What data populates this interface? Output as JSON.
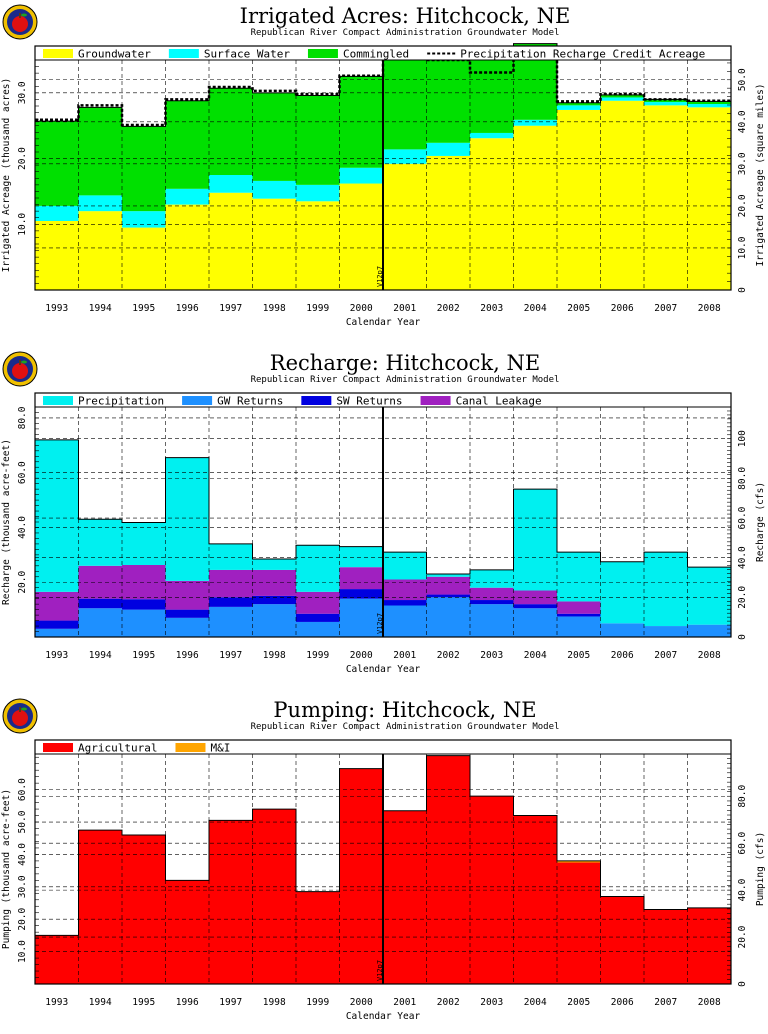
{
  "colors": {
    "groundwater": "#ffff00",
    "surface_water": "#00ffff",
    "commingled": "#00e000",
    "precipitation": "#00f0f0",
    "gw_returns": "#1e90ff",
    "sw_returns": "#0000e0",
    "canal_leakage": "#a020c0",
    "agricultural": "#ff0000",
    "mi": "#ffa500"
  },
  "logo_icon": "apple-logo-icon",
  "chart_data": [
    {
      "type": "bar",
      "stacked": true,
      "title": "Irrigated Acres: Hitchcock, NE",
      "subtitle": "Republican River Compact Administration Groundwater Model",
      "xlabel": "Calendar Year",
      "ylabel": "Irrigated Acreage (thousand acres)",
      "y2label": "Irrigated Acreage (square miles)",
      "annotation": "V12p7",
      "ylim": [
        0,
        35
      ],
      "yticks": [
        "10.0",
        "20.0",
        "30.0"
      ],
      "ytick_values": [
        10,
        20,
        30
      ],
      "y2lim": [
        0,
        54.7
      ],
      "y2ticks": [
        "0",
        "10.0",
        "20.0",
        "30.0",
        "40.0",
        "50.0"
      ],
      "y2tick_values": [
        0,
        10,
        20,
        30,
        40,
        50
      ],
      "legend_position": "top",
      "categories": [
        "1993",
        "1994",
        "1995",
        "1996",
        "1997",
        "1998",
        "1999",
        "2000",
        "2001",
        "2002",
        "2003",
        "2004",
        "2005",
        "2006",
        "2007",
        "2008"
      ],
      "series": [
        {
          "name": "Groundwater",
          "color_key": "groundwater",
          "values": [
            10.5,
            12.0,
            9.5,
            13.0,
            14.8,
            13.9,
            13.5,
            16.2,
            19.2,
            20.4,
            23.1,
            25.0,
            27.4,
            28.8,
            28.1,
            27.8
          ]
        },
        {
          "name": "Surface Water",
          "color_key": "surface_water",
          "values": [
            2.3,
            2.4,
            2.5,
            2.4,
            2.7,
            2.7,
            2.5,
            2.4,
            2.2,
            2.0,
            0.8,
            0.9,
            0.7,
            0.5,
            0.5,
            0.5
          ]
        },
        {
          "name": "Commingled",
          "color_key": "commingled",
          "values": [
            12.9,
            13.4,
            12.9,
            13.4,
            13.2,
            13.4,
            13.6,
            13.9,
            14.9,
            14.4,
            12.6,
            11.6,
            0.4,
            0.4,
            0.4,
            0.4
          ]
        }
      ],
      "line_series": {
        "name": "Precipitation Recharge Credit Acreage",
        "style": "dashed",
        "values": [
          25.9,
          28.1,
          25.1,
          29.0,
          30.9,
          30.3,
          29.8,
          32.6,
          36.5,
          35.0,
          33.1,
          35.7,
          28.7,
          29.8,
          29.0,
          28.8
        ]
      }
    },
    {
      "type": "bar",
      "stacked": true,
      "title": "Recharge: Hitchcock, NE",
      "subtitle": "Republican River Compact Administration Groundwater Model",
      "xlabel": "Calendar Year",
      "ylabel": "Recharge (thousand acre-feet)",
      "y2label": "Recharge (cfs)",
      "annotation": "V12p7",
      "ylim": [
        0,
        84
      ],
      "yticks": [
        "20.0",
        "40.0",
        "60.0",
        "80.0"
      ],
      "ytick_values": [
        20,
        40,
        60,
        80
      ],
      "y2lim": [
        0,
        116
      ],
      "y2ticks": [
        "0",
        "20.0",
        "40.0",
        "60.0",
        "80.0",
        "100"
      ],
      "y2tick_values": [
        0,
        20,
        40,
        60,
        80,
        100
      ],
      "legend_position": "top",
      "categories": [
        "1993",
        "1994",
        "1995",
        "1996",
        "1997",
        "1998",
        "1999",
        "2000",
        "2001",
        "2002",
        "2003",
        "2004",
        "2005",
        "2006",
        "2007",
        "2008"
      ],
      "series": [
        {
          "name": "GW Returns",
          "color_key": "gw_returns",
          "values": [
            3.0,
            10.5,
            10.0,
            7.0,
            11.0,
            12.0,
            5.5,
            14.0,
            11.5,
            14.5,
            12.0,
            10.5,
            7.5,
            5.0,
            4.0,
            4.5
          ]
        },
        {
          "name": "SW Returns",
          "color_key": "sw_returns",
          "values": [
            3.0,
            3.5,
            3.8,
            3.0,
            3.5,
            3.0,
            3.0,
            3.5,
            2.0,
            1.0,
            1.5,
            1.5,
            1.0,
            0.0,
            0.0,
            0.0
          ]
        },
        {
          "name": "Canal Leakage",
          "color_key": "canal_leakage",
          "values": [
            10.5,
            12.0,
            12.5,
            10.5,
            10.0,
            9.5,
            8.0,
            8.0,
            7.5,
            6.5,
            4.5,
            5.0,
            4.5,
            0.0,
            0.0,
            0.0
          ]
        },
        {
          "name": "Precipitation",
          "color_key": "precipitation",
          "values": [
            55.5,
            17.0,
            15.5,
            45.0,
            9.5,
            4.0,
            17.0,
            7.5,
            10.0,
            1.0,
            6.5,
            37.0,
            18.0,
            22.5,
            27.0,
            21.0
          ]
        }
      ]
    },
    {
      "type": "bar",
      "stacked": true,
      "title": "Pumping: Hitchcock, NE",
      "subtitle": "Republican River Compact Administration Groundwater Model",
      "xlabel": "Calendar Year",
      "ylabel": "Pumping (thousand acre-feet)",
      "y2label": "Pumping (cfs)",
      "annotation": "V12p7",
      "ylim": [
        0,
        71
      ],
      "yticks": [
        "10.0",
        "20.0",
        "30.0",
        "40.0",
        "50.0",
        "60.0"
      ],
      "ytick_values": [
        10,
        20,
        30,
        40,
        50,
        60
      ],
      "y2lim": [
        0,
        98
      ],
      "y2ticks": [
        "0",
        "20.0",
        "40.0",
        "60.0",
        "80.0"
      ],
      "y2tick_values": [
        0,
        20,
        40,
        60,
        80
      ],
      "legend_position": "top",
      "categories": [
        "1993",
        "1994",
        "1995",
        "1996",
        "1997",
        "1998",
        "1999",
        "2000",
        "2001",
        "2002",
        "2003",
        "2004",
        "2005",
        "2006",
        "2007",
        "2008"
      ],
      "series": [
        {
          "name": "Agricultural",
          "color_key": "agricultural",
          "values": [
            15.0,
            47.5,
            46.0,
            32.0,
            50.5,
            54.0,
            28.5,
            66.5,
            53.5,
            70.5,
            58.0,
            52.0,
            37.5,
            27.0,
            23.0,
            23.5
          ]
        },
        {
          "name": "M&I",
          "color_key": "mi",
          "values": [
            0.0,
            0.0,
            0.0,
            0.0,
            0.0,
            0.0,
            0.0,
            0.0,
            0.0,
            0.0,
            0.0,
            0.0,
            0.5,
            0.0,
            0.0,
            0.0
          ]
        }
      ]
    }
  ]
}
